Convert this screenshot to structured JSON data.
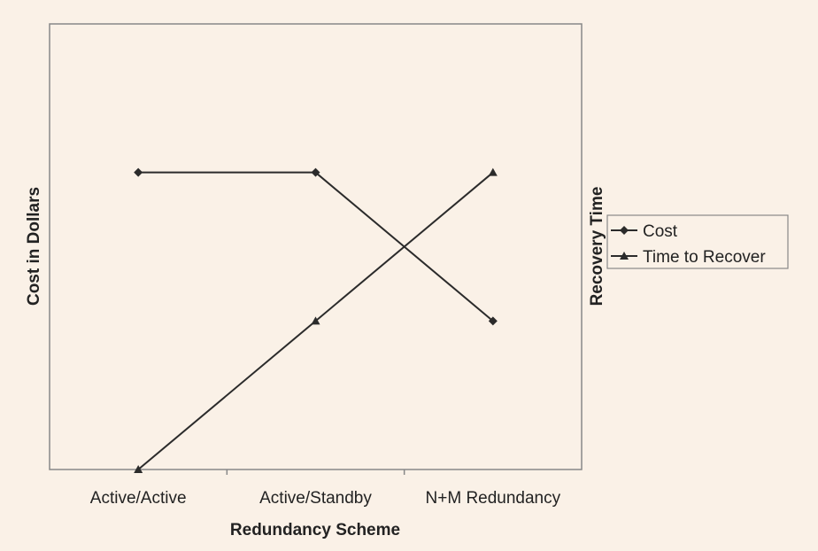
{
  "chart_data": {
    "type": "line",
    "categories": [
      "Active/Active",
      "Active/Standby",
      "N+M Redundancy"
    ],
    "xlabel": "Redundancy Scheme",
    "ylabel": "Cost in Dollars",
    "y2label": "Recovery Time",
    "grid": false,
    "legend_position": "right",
    "ylim": [
      0,
      100
    ],
    "y2lim": [
      0,
      100
    ],
    "series": [
      {
        "name": "Cost",
        "axis": "left",
        "marker": "diamond",
        "values": [
          80,
          80,
          40
        ]
      },
      {
        "name": "Time to Recover",
        "axis": "right",
        "marker": "triangle",
        "values": [
          0,
          40,
          80
        ]
      }
    ],
    "colors": {
      "background": "#faf1e7",
      "line": "#2b2b2b",
      "frame": "#888888"
    }
  }
}
